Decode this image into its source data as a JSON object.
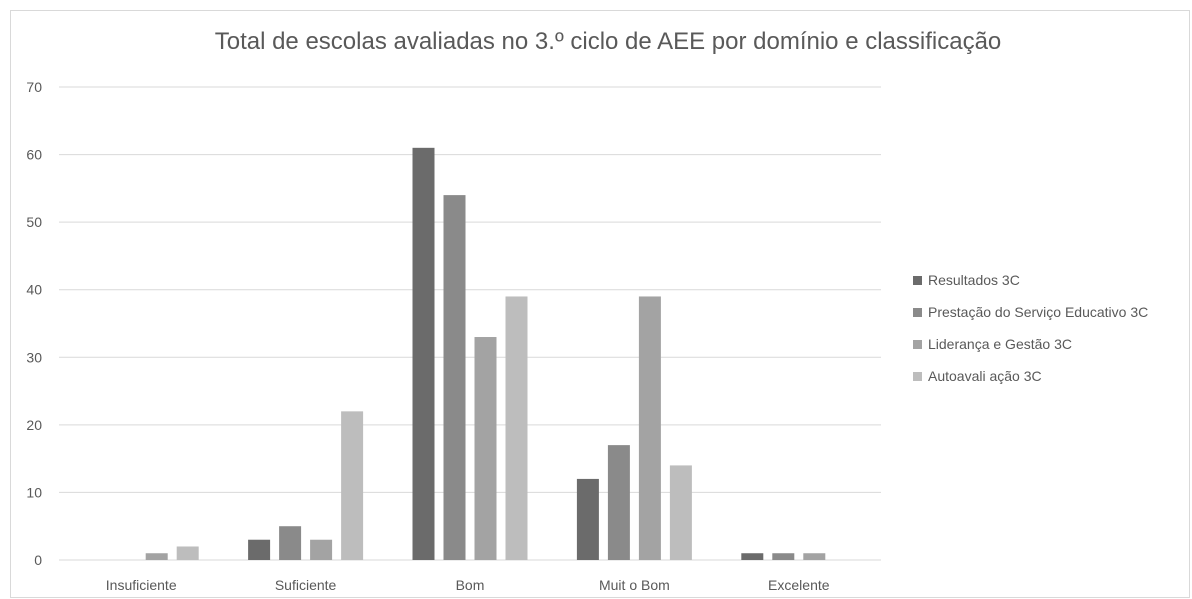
{
  "chart_data": {
    "type": "bar",
    "title": "Total de escolas avaliadas no 3.º ciclo de AEE por domínio e classificação",
    "categories": [
      "Insuficiente",
      "Suficiente",
      "Bom",
      "Muit o Bom",
      "Excelente"
    ],
    "series": [
      {
        "name": "Resultados 3C",
        "color": "#6b6b6b",
        "values": [
          0,
          3,
          61,
          12,
          1
        ]
      },
      {
        "name": "Prestação do Serviço Educativo 3C",
        "color": "#8a8a8a",
        "values": [
          0,
          5,
          54,
          17,
          1
        ]
      },
      {
        "name": "Liderança e Gestão 3C",
        "color": "#a3a3a3",
        "values": [
          1,
          3,
          33,
          39,
          1
        ]
      },
      {
        "name": "Autoavali ação 3C",
        "color": "#bdbdbd",
        "values": [
          2,
          22,
          39,
          14,
          0
        ]
      }
    ],
    "ylim": [
      0,
      70
    ],
    "yticks": [
      0,
      10,
      20,
      30,
      40,
      50,
      60,
      70
    ],
    "grid": true,
    "legend": "right"
  }
}
